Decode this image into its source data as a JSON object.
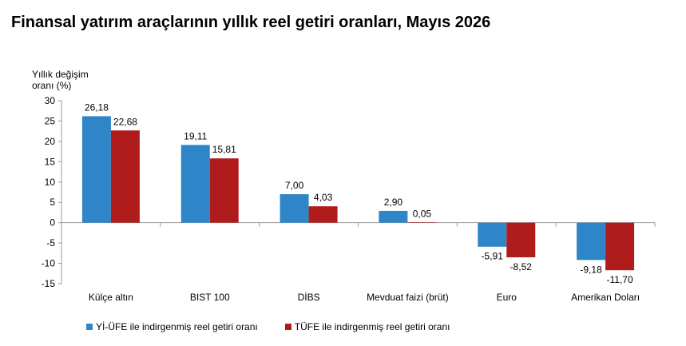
{
  "title": "Finansal yatırım araçlarının yıllık reel getiri oranları, Mayıs 2026",
  "chart_data": {
    "type": "bar",
    "title": "Finansal yatırım araçlarının yıllık reel getiri oranları, Mayıs 2026",
    "ylabel_line1": "Yıllık değişim",
    "ylabel_line2": "oranı (%)",
    "ylim": [
      -15,
      30
    ],
    "yticks": [
      30,
      25,
      20,
      15,
      10,
      5,
      0,
      -5,
      -10,
      -15
    ],
    "grid": false,
    "legend_position": "bottom",
    "categories": [
      "Külçe altın",
      "BIST 100",
      "DİBS",
      "Mevduat faizi (brüt)",
      "Euro",
      "Amerikan Doları"
    ],
    "series": [
      {
        "name": "Yİ-ÜFE ile indirgenmiş reel getiri oranı",
        "color": "#2e86c8",
        "values": [
          26.18,
          19.11,
          7.0,
          2.9,
          -5.91,
          -9.18
        ],
        "labels": [
          "26,18",
          "19,11",
          "7,00",
          "2,90",
          "-5,91",
          "-9,18"
        ]
      },
      {
        "name": "TÜFE ile indirgenmiş reel getiri oranı",
        "color": "#b01c1c",
        "values": [
          22.68,
          15.81,
          4.03,
          0.05,
          -8.52,
          -11.7
        ],
        "labels": [
          "22,68",
          "15,81",
          "4,03",
          "0,05",
          "-8,52",
          "-11,70"
        ]
      }
    ]
  }
}
